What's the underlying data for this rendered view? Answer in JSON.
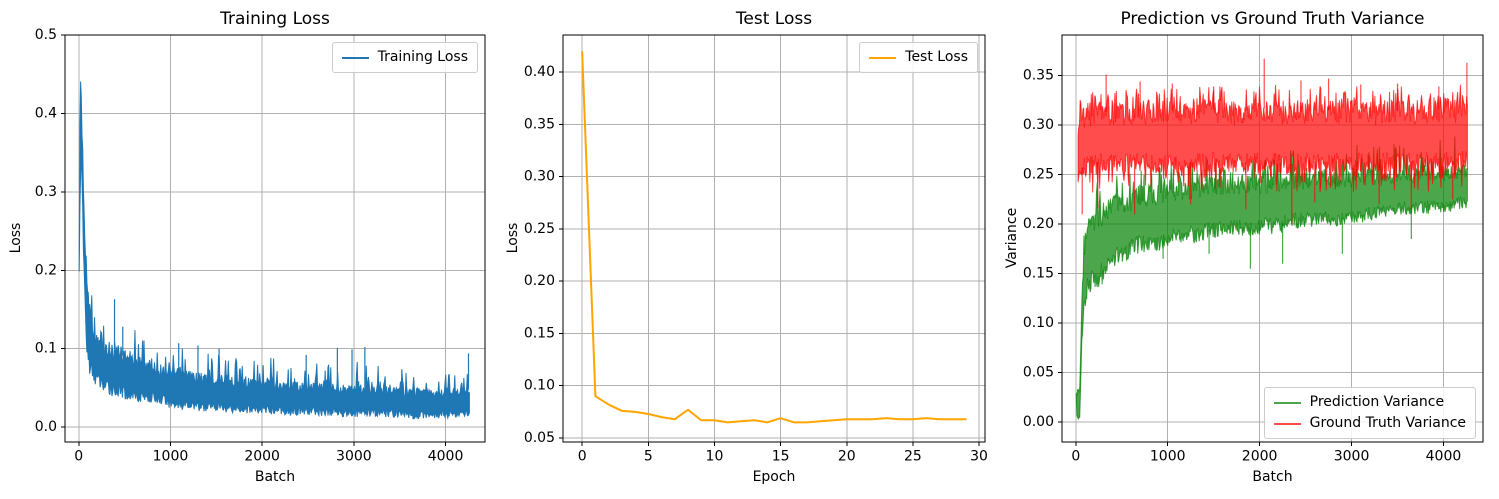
{
  "figure": {
    "background": "#ffffff",
    "grid_color": "#b0b0b0",
    "spine_color": "#000000"
  },
  "chart_data": [
    {
      "type": "line",
      "title": "Training Loss",
      "xlabel": "Batch",
      "ylabel": "Loss",
      "xlim": [
        -150,
        4430
      ],
      "ylim": [
        -0.019,
        0.5
      ],
      "xticks": [
        0,
        1000,
        2000,
        3000,
        4000
      ],
      "xtick_labels": [
        "0",
        "1000",
        "2000",
        "3000",
        "4000"
      ],
      "yticks": [
        0.0,
        0.1,
        0.2,
        0.3,
        0.4,
        0.5
      ],
      "ytick_labels": [
        "0.0",
        "0.1",
        "0.2",
        "0.3",
        "0.4",
        "0.5"
      ],
      "grid": true,
      "legend": {
        "position": "upper right",
        "entries": [
          {
            "label": "Training Loss",
            "color": "#1f77b4"
          }
        ]
      },
      "series": [
        {
          "name": "Training Loss",
          "color": "#1f77b4",
          "opacity": 1,
          "style": "noisy-band",
          "envelope": {
            "x": [
              5,
              15,
              25,
              35,
              50,
              65,
              80,
              100,
              130,
              170,
              220,
              300,
              400,
              500,
              600,
              700,
              800,
              900,
              1000,
              1100,
              1250,
              1400,
              1550,
              1700,
              1850,
              2000,
              2150,
              2300,
              2450,
              2600,
              2750,
              2900,
              3050,
              3200,
              3350,
              3500,
              3650,
              3800,
              3950,
              4100,
              4200,
              4260
            ],
            "core": [
              0.215,
              0.477,
              0.46,
              0.38,
              0.335,
              0.26,
              0.22,
              0.19,
              0.155,
              0.13,
              0.115,
              0.11,
              0.105,
              0.1,
              0.095,
              0.09,
              0.085,
              0.08,
              0.078,
              0.075,
              0.072,
              0.07,
              0.068,
              0.065,
              0.064,
              0.062,
              0.06,
              0.059,
              0.058,
              0.057,
              0.056,
              0.055,
              0.055,
              0.054,
              0.053,
              0.052,
              0.05,
              0.05,
              0.05,
              0.048,
              0.048,
              0.055
            ],
            "peak": [
              0.215,
              0.477,
              0.46,
              0.38,
              0.335,
              0.28,
              0.25,
              0.21,
              0.18,
              0.155,
              0.14,
              0.13,
              0.135,
              0.125,
              0.13,
              0.12,
              0.105,
              0.1,
              0.105,
              0.107,
              0.1,
              0.1,
              0.095,
              0.09,
              0.092,
              0.09,
              0.088,
              0.085,
              0.085,
              0.082,
              0.085,
              0.088,
              0.09,
              0.08,
              0.078,
              0.075,
              0.072,
              0.07,
              0.072,
              0.068,
              0.065,
              0.075
            ],
            "lower": [
              0.195,
              0.3,
              0.33,
              0.3,
              0.22,
              0.16,
              0.1,
              0.075,
              0.06,
              0.055,
              0.05,
              0.042,
              0.038,
              0.035,
              0.033,
              0.032,
              0.03,
              0.028,
              0.024,
              0.022,
              0.02,
              0.02,
              0.019,
              0.018,
              0.017,
              0.016,
              0.016,
              0.015,
              0.015,
              0.014,
              0.014,
              0.013,
              0.013,
              0.013,
              0.012,
              0.012,
              0.01,
              0.011,
              0.011,
              0.012,
              0.013,
              0.014
            ]
          },
          "spikes": [
            [
              390,
              0.163
            ],
            [
              480,
              0.128
            ],
            [
              1090,
              0.107
            ],
            [
              1300,
              0.104
            ],
            [
              1530,
              0.1
            ],
            [
              2480,
              0.092
            ],
            [
              2820,
              0.101
            ],
            [
              2980,
              0.099
            ],
            [
              3120,
              0.102
            ],
            [
              4250,
              0.094
            ]
          ]
        }
      ]
    },
    {
      "type": "line",
      "title": "Test Loss",
      "xlabel": "Epoch",
      "ylabel": "Loss",
      "xlim": [
        -1.45,
        30.45
      ],
      "ylim": [
        0.0462,
        0.4354
      ],
      "xticks": [
        0,
        5,
        10,
        15,
        20,
        25,
        30
      ],
      "xtick_labels": [
        "0",
        "5",
        "10",
        "15",
        "20",
        "25",
        "30"
      ],
      "yticks": [
        0.05,
        0.1,
        0.15,
        0.2,
        0.25,
        0.3,
        0.35,
        0.4
      ],
      "ytick_labels": [
        "0.05",
        "0.10",
        "0.15",
        "0.20",
        "0.25",
        "0.30",
        "0.35",
        "0.40"
      ],
      "grid": true,
      "legend": {
        "position": "upper right",
        "entries": [
          {
            "label": "Test Loss",
            "color": "#ffa500"
          }
        ]
      },
      "series": [
        {
          "name": "Test Loss",
          "color": "#ffa500",
          "opacity": 1,
          "style": "line",
          "linewidth": 2,
          "x": [
            0,
            1,
            2,
            3,
            4,
            5,
            6,
            7,
            8,
            9,
            10,
            11,
            12,
            13,
            14,
            15,
            16,
            17,
            18,
            19,
            20,
            21,
            22,
            23,
            24,
            25,
            26,
            27,
            28,
            29
          ],
          "y": [
            0.419,
            0.09,
            0.082,
            0.076,
            0.075,
            0.073,
            0.07,
            0.068,
            0.077,
            0.067,
            0.067,
            0.065,
            0.066,
            0.067,
            0.065,
            0.069,
            0.065,
            0.065,
            0.066,
            0.067,
            0.068,
            0.068,
            0.068,
            0.069,
            0.068,
            0.068,
            0.069,
            0.068,
            0.068,
            0.068
          ]
        }
      ]
    },
    {
      "type": "line",
      "title": "Prediction vs Ground Truth Variance",
      "xlabel": "Batch",
      "ylabel": "Variance",
      "xlim": [
        -150,
        4430
      ],
      "ylim": [
        -0.02,
        0.391
      ],
      "xticks": [
        0,
        1000,
        2000,
        3000,
        4000
      ],
      "xtick_labels": [
        "0",
        "1000",
        "2000",
        "3000",
        "4000"
      ],
      "yticks": [
        0.0,
        0.05,
        0.1,
        0.15,
        0.2,
        0.25,
        0.3,
        0.35
      ],
      "ytick_labels": [
        "0.00",
        "0.05",
        "0.10",
        "0.15",
        "0.20",
        "0.25",
        "0.30",
        "0.35"
      ],
      "grid": true,
      "legend": {
        "position": "lower right",
        "entries": [
          {
            "label": "Prediction Variance",
            "color": "#4ca64c"
          },
          {
            "label": "Ground Truth Variance",
            "color": "#ff4c4c"
          }
        ]
      },
      "series": [
        {
          "name": "Prediction Variance",
          "color": "#008000",
          "opacity": 0.7,
          "style": "noisy-band",
          "envelope": {
            "x": [
              5,
              12,
              22,
              35,
              45,
              55,
              70,
              90,
              120,
              160,
              200,
              250,
              300,
              350,
              400,
              500,
              600,
              700,
              800,
              900,
              1000,
              1150,
              1300,
              1450,
              1600,
              1750,
              1900,
              2050,
              2200,
              2350,
              2500,
              2650,
              2800,
              2950,
              3100,
              3250,
              3400,
              3550,
              3700,
              3850,
              4000,
              4150,
              4260
            ],
            "core": [
              0.03,
              0.03,
              0.032,
              0.03,
              0.05,
              0.09,
              0.15,
              0.185,
              0.2,
              0.21,
              0.215,
              0.22,
              0.225,
              0.225,
              0.23,
              0.235,
              0.235,
              0.24,
              0.24,
              0.24,
              0.245,
              0.245,
              0.245,
              0.25,
              0.25,
              0.25,
              0.25,
              0.25,
              0.252,
              0.255,
              0.253,
              0.255,
              0.253,
              0.255,
              0.257,
              0.255,
              0.257,
              0.255,
              0.258,
              0.26,
              0.258,
              0.26,
              0.26
            ],
            "peak": [
              0.032,
              0.032,
              0.034,
              0.032,
              0.055,
              0.1,
              0.17,
              0.21,
              0.23,
              0.24,
              0.245,
              0.25,
              0.255,
              0.25,
              0.255,
              0.26,
              0.255,
              0.26,
              0.255,
              0.265,
              0.265,
              0.26,
              0.265,
              0.27,
              0.265,
              0.27,
              0.275,
              0.27,
              0.275,
              0.28,
              0.275,
              0.28,
              0.275,
              0.28,
              0.285,
              0.28,
              0.285,
              0.28,
              0.285,
              0.29,
              0.285,
              0.29,
              0.285
            ],
            "lower": [
              0.025,
              0.001,
              0.005,
              0.0,
              0.002,
              0.04,
              0.08,
              0.1,
              0.125,
              0.13,
              0.135,
              0.135,
              0.14,
              0.15,
              0.155,
              0.16,
              0.165,
              0.17,
              0.17,
              0.17,
              0.175,
              0.18,
              0.18,
              0.185,
              0.185,
              0.19,
              0.185,
              0.19,
              0.19,
              0.195,
              0.195,
              0.2,
              0.195,
              0.2,
              0.2,
              0.205,
              0.205,
              0.21,
              0.21,
              0.21,
              0.21,
              0.215,
              0.215
            ]
          },
          "spikes": [
            [
              950,
              0.165
            ],
            [
              1450,
              0.17
            ],
            [
              1900,
              0.155
            ],
            [
              2250,
              0.16
            ],
            [
              2900,
              0.17
            ],
            [
              3650,
              0.185
            ]
          ]
        },
        {
          "name": "Ground Truth Variance",
          "color": "#ff0000",
          "opacity": 0.7,
          "style": "noisy-band",
          "envelope": {
            "x": [
              25,
              60,
              100,
              150,
              200,
              300,
              400,
              500,
              600,
              700,
              800,
              900,
              1000,
              1150,
              1300,
              1450,
              1600,
              1750,
              1900,
              2050,
              2200,
              2350,
              2500,
              2650,
              2800,
              2950,
              3100,
              3250,
              3400,
              3550,
              3700,
              3850,
              4000,
              4150,
              4260
            ],
            "core": [
              0.31,
              0.315,
              0.32,
              0.322,
              0.32,
              0.325,
              0.322,
              0.325,
              0.32,
              0.325,
              0.322,
              0.325,
              0.328,
              0.322,
              0.325,
              0.328,
              0.325,
              0.322,
              0.325,
              0.328,
              0.325,
              0.322,
              0.325,
              0.328,
              0.325,
              0.325,
              0.328,
              0.322,
              0.325,
              0.325,
              0.322,
              0.325,
              0.328,
              0.325,
              0.33
            ],
            "peak": [
              0.325,
              0.33,
              0.335,
              0.338,
              0.335,
              0.34,
              0.335,
              0.34,
              0.335,
              0.34,
              0.335,
              0.34,
              0.342,
              0.335,
              0.34,
              0.342,
              0.34,
              0.335,
              0.34,
              0.345,
              0.34,
              0.335,
              0.34,
              0.342,
              0.34,
              0.34,
              0.342,
              0.335,
              0.34,
              0.34,
              0.335,
              0.34,
              0.342,
              0.34,
              0.345
            ],
            "lower": [
              0.245,
              0.245,
              0.248,
              0.25,
              0.252,
              0.252,
              0.252,
              0.25,
              0.252,
              0.252,
              0.252,
              0.25,
              0.252,
              0.252,
              0.252,
              0.252,
              0.25,
              0.252,
              0.252,
              0.252,
              0.252,
              0.25,
              0.252,
              0.252,
              0.252,
              0.252,
              0.252,
              0.252,
              0.252,
              0.252,
              0.252,
              0.252,
              0.252,
              0.252,
              0.255
            ],
            "trough": [
              0.225,
              0.225,
              0.228,
              0.23,
              0.232,
              0.232,
              0.232,
              0.23,
              0.232,
              0.232,
              0.232,
              0.23,
              0.232,
              0.232,
              0.232,
              0.232,
              0.23,
              0.232,
              0.232,
              0.232,
              0.232,
              0.23,
              0.232,
              0.232,
              0.232,
              0.232,
              0.232,
              0.232,
              0.232,
              0.232,
              0.232,
              0.232,
              0.232,
              0.232,
              0.235
            ]
          },
          "spikes": [
            [
              330,
              0.351
            ],
            [
              700,
              0.344
            ],
            [
              1050,
              0.342
            ],
            [
              1500,
              0.339
            ],
            [
              2050,
              0.367
            ],
            [
              2450,
              0.345
            ],
            [
              2750,
              0.347
            ],
            [
              3100,
              0.341
            ],
            [
              3500,
              0.342
            ],
            [
              3950,
              0.339
            ],
            [
              4255,
              0.363
            ],
            [
              70,
              0.21
            ],
            [
              240,
              0.216
            ],
            [
              640,
              0.21
            ],
            [
              1250,
              0.22
            ],
            [
              1850,
              0.215
            ],
            [
              2350,
              0.2
            ],
            [
              2600,
              0.222
            ],
            [
              3300,
              0.22
            ],
            [
              3650,
              0.215
            ],
            [
              4100,
              0.225
            ]
          ]
        }
      ]
    }
  ]
}
